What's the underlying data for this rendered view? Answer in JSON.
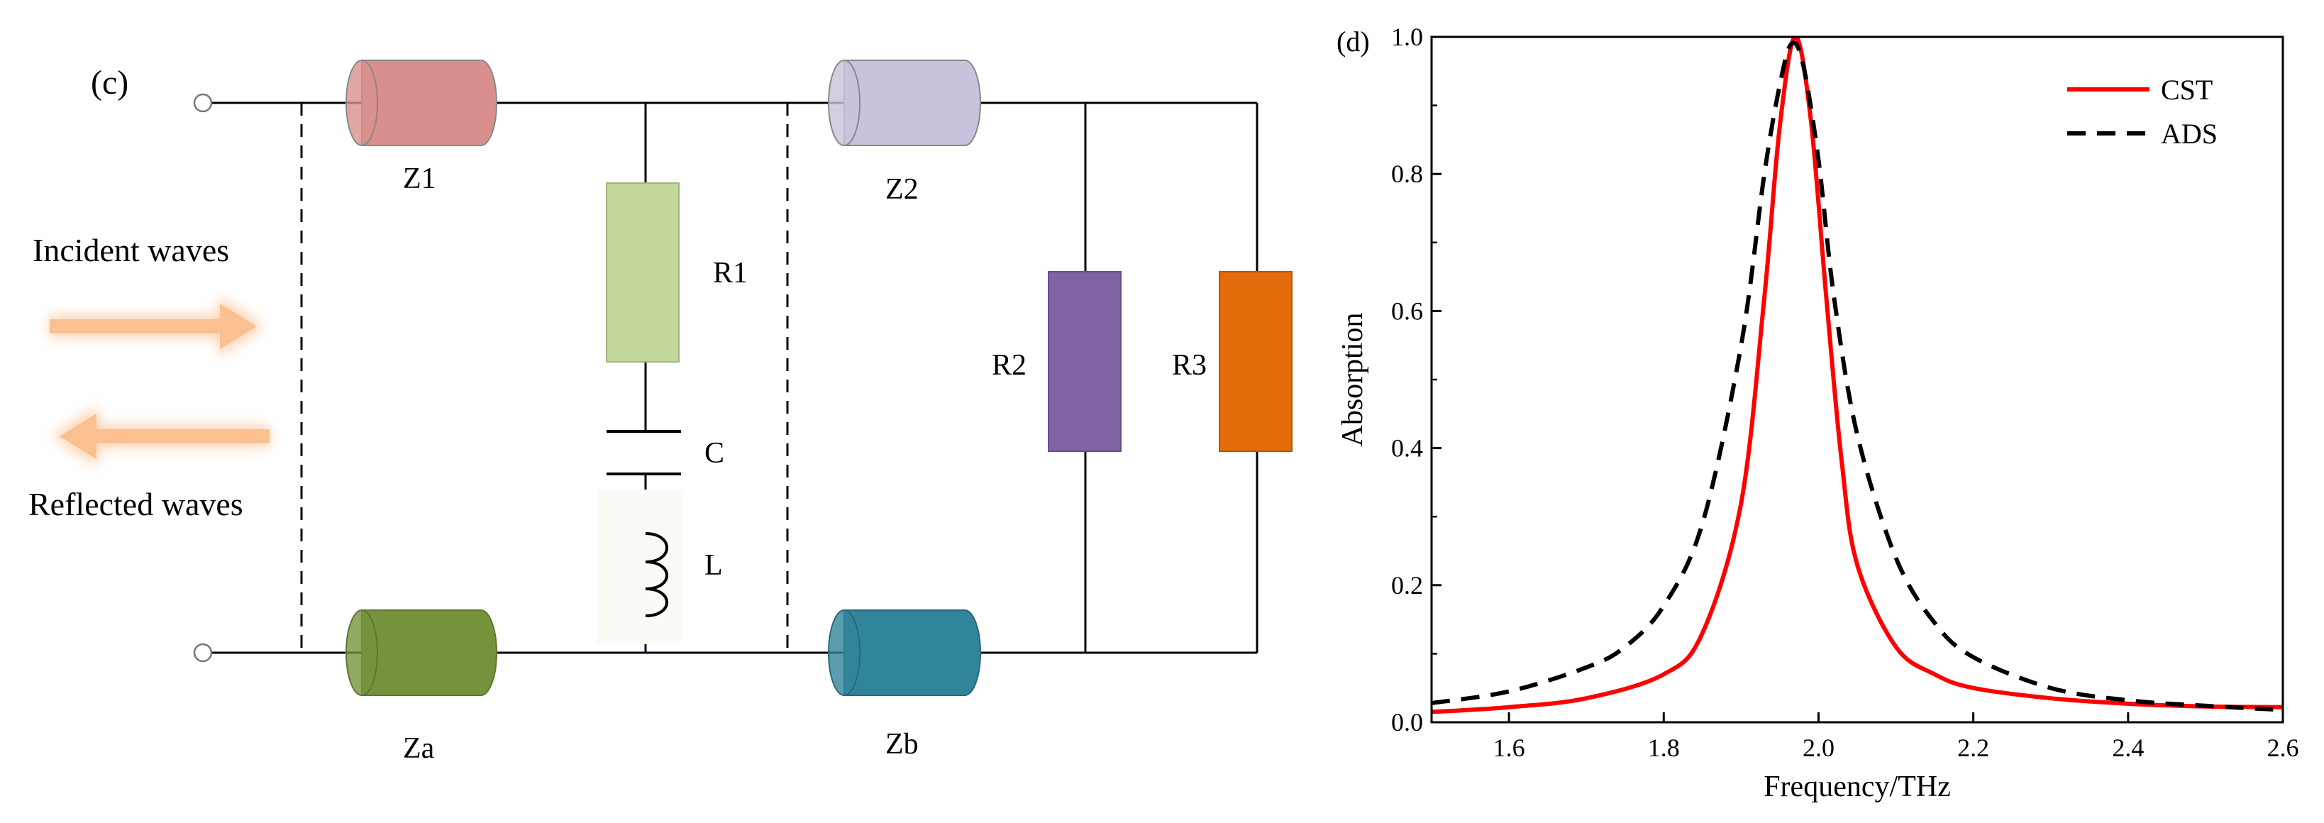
{
  "circuit": {
    "panel_label": "(c)",
    "incident_label": "Incident waves",
    "reflected_label": "Reflected waves",
    "labels": {
      "z1": "Z1",
      "z2": "Z2",
      "za": "Za",
      "zb": "Zb",
      "r1": "R1",
      "r2": "R2",
      "r3": "R3",
      "c": "C",
      "l": "L"
    },
    "colors": {
      "z1": "#d9908c",
      "z2": "#ccc1dc",
      "za": "#76933c",
      "zb": "#31859b",
      "r1": "#c4d79b",
      "r2": "#8064a2",
      "r3": "#e46c0a",
      "arrow": "#fac090"
    }
  },
  "chart_data": {
    "type": "line",
    "panel_label": "(d)",
    "title": "",
    "xlabel": "Frequency/THz",
    "ylabel": "Absorption",
    "xlim": [
      1.5,
      2.6
    ],
    "ylim": [
      0.0,
      1.0
    ],
    "xticks": [
      1.6,
      1.8,
      2.0,
      2.2,
      2.4,
      2.6
    ],
    "yticks": [
      0.0,
      0.2,
      0.4,
      0.6,
      0.8,
      1.0
    ],
    "xtick_labels": [
      "1.6",
      "1.8",
      "2.0",
      "2.2",
      "2.4",
      "2.6"
    ],
    "ytick_labels": [
      "0.0",
      "0.2",
      "0.4",
      "0.6",
      "0.8",
      "1.0"
    ],
    "legend_position": "top-right",
    "series": [
      {
        "name": "CST",
        "color": "#ff0000",
        "style": "solid",
        "x": [
          1.5,
          1.6,
          1.7,
          1.8,
          1.85,
          1.9,
          1.93,
          1.95,
          1.97,
          1.99,
          2.01,
          2.03,
          2.05,
          2.1,
          2.15,
          2.2,
          2.3,
          2.4,
          2.5,
          2.6
        ],
        "y": [
          0.015,
          0.022,
          0.035,
          0.07,
          0.13,
          0.32,
          0.62,
          0.87,
          1.0,
          0.88,
          0.62,
          0.38,
          0.23,
          0.11,
          0.07,
          0.05,
          0.035,
          0.027,
          0.023,
          0.022
        ]
      },
      {
        "name": "ADS",
        "color": "#000000",
        "style": "dashed",
        "x": [
          1.5,
          1.6,
          1.7,
          1.75,
          1.8,
          1.85,
          1.9,
          1.93,
          1.95,
          1.965,
          1.98,
          2.0,
          2.02,
          2.05,
          2.1,
          2.15,
          2.2,
          2.3,
          2.4,
          2.5,
          2.6
        ],
        "y": [
          0.028,
          0.045,
          0.08,
          0.11,
          0.17,
          0.29,
          0.55,
          0.8,
          0.93,
          0.99,
          0.96,
          0.82,
          0.62,
          0.42,
          0.24,
          0.145,
          0.095,
          0.05,
          0.032,
          0.024,
          0.018
        ]
      }
    ]
  }
}
